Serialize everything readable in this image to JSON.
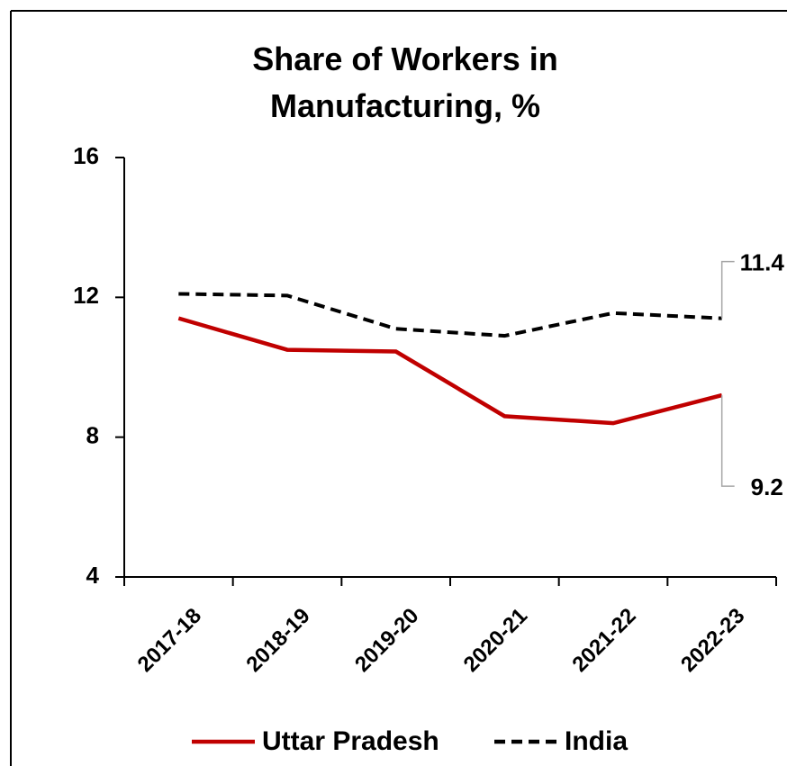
{
  "chart_data": {
    "type": "line",
    "title": "Share of Workers in Manufacturing, %",
    "categories": [
      "2017-18",
      "2018-19",
      "2019-20",
      "2020-21",
      "2021-22",
      "2022-23"
    ],
    "series": [
      {
        "name": "Uttar Pradesh",
        "color": "#c00000",
        "dash": false,
        "values": [
          11.4,
          10.5,
          10.45,
          8.6,
          8.4,
          9.2
        ]
      },
      {
        "name": "India",
        "color": "#000000",
        "dash": true,
        "values": [
          12.1,
          12.05,
          11.1,
          10.9,
          11.55,
          11.4
        ]
      }
    ],
    "label_last": true,
    "ylim": [
      4,
      16
    ],
    "yticks": [
      4,
      8,
      12,
      16
    ],
    "legend": "bottom"
  }
}
